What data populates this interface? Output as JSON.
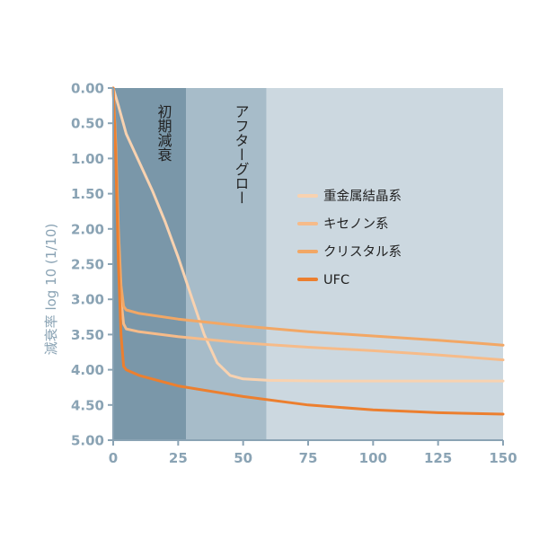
{
  "chart_data": {
    "type": "line",
    "title": "",
    "xlabel": "",
    "ylabel": "減衰率 log 10 (1/10)",
    "xlim": [
      0,
      150
    ],
    "ylim": [
      0,
      5
    ],
    "y_inverted": true,
    "x_ticks": [
      "0",
      "25",
      "50",
      "75",
      "100",
      "125",
      "150"
    ],
    "y_ticks": [
      "0.00",
      "0.50",
      "1.00",
      "1.50",
      "2.00",
      "2.50",
      "3.00",
      "3.50",
      "4.00",
      "4.50",
      "5.00"
    ],
    "grid": false,
    "legend_position": "center-right",
    "regions": [
      {
        "label": "初期減衰",
        "x_start": 0,
        "x_end": 28,
        "color": "#7a97a9"
      },
      {
        "label": "アフターグロー",
        "x_start": 28,
        "x_end": 59,
        "color": "#a7bcc9"
      },
      {
        "label": "",
        "x_start": 59,
        "x_end": 150,
        "color": "#ccd8e0"
      }
    ],
    "series": [
      {
        "name": "重金属結晶系",
        "color": "#f8d2b0",
        "points": [
          [
            0,
            0
          ],
          [
            2,
            0.25
          ],
          [
            5,
            0.65
          ],
          [
            10,
            1.05
          ],
          [
            15,
            1.45
          ],
          [
            20,
            1.9
          ],
          [
            25,
            2.4
          ],
          [
            30,
            2.95
          ],
          [
            35,
            3.5
          ],
          [
            40,
            3.9
          ],
          [
            45,
            4.08
          ],
          [
            50,
            4.13
          ],
          [
            60,
            4.15
          ],
          [
            80,
            4.16
          ],
          [
            100,
            4.16
          ],
          [
            125,
            4.16
          ],
          [
            150,
            4.16
          ]
        ]
      },
      {
        "name": "キセノン系",
        "color": "#f6bb89",
        "points": [
          [
            0,
            0
          ],
          [
            1,
            0.9
          ],
          [
            2,
            2.2
          ],
          [
            3,
            3.0
          ],
          [
            4,
            3.35
          ],
          [
            5,
            3.42
          ],
          [
            10,
            3.46
          ],
          [
            25,
            3.53
          ],
          [
            50,
            3.62
          ],
          [
            75,
            3.68
          ],
          [
            100,
            3.73
          ],
          [
            125,
            3.79
          ],
          [
            150,
            3.86
          ]
        ]
      },
      {
        "name": "クリスタル系",
        "color": "#f2a765",
        "points": [
          [
            0,
            0
          ],
          [
            1,
            0.8
          ],
          [
            2,
            2.0
          ],
          [
            3,
            2.8
          ],
          [
            4,
            3.1
          ],
          [
            5,
            3.15
          ],
          [
            10,
            3.2
          ],
          [
            25,
            3.28
          ],
          [
            50,
            3.38
          ],
          [
            75,
            3.46
          ],
          [
            100,
            3.52
          ],
          [
            125,
            3.58
          ],
          [
            150,
            3.65
          ]
        ]
      },
      {
        "name": "UFC",
        "color": "#ec7f2f",
        "points": [
          [
            0,
            0
          ],
          [
            1,
            1.0
          ],
          [
            2,
            2.5
          ],
          [
            3,
            3.5
          ],
          [
            4,
            3.95
          ],
          [
            5,
            4.0
          ],
          [
            10,
            4.08
          ],
          [
            25,
            4.23
          ],
          [
            50,
            4.38
          ],
          [
            75,
            4.5
          ],
          [
            100,
            4.57
          ],
          [
            125,
            4.61
          ],
          [
            150,
            4.63
          ]
        ]
      }
    ]
  }
}
